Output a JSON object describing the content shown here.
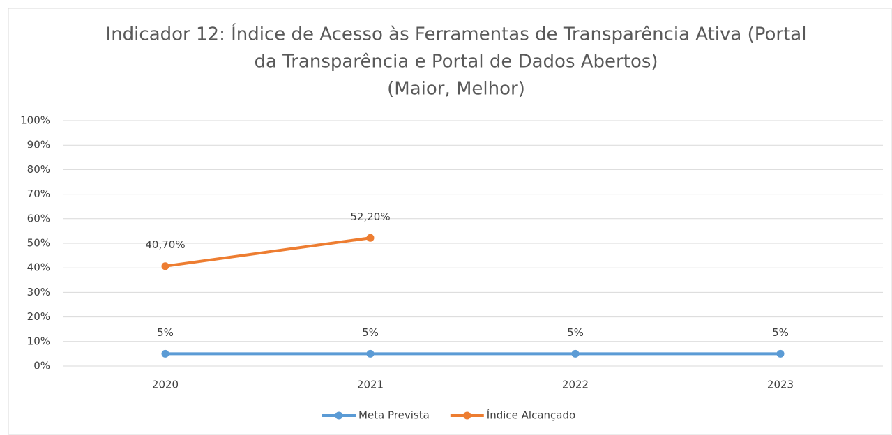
{
  "chart_data": {
    "type": "line",
    "title": [
      "Indicador 12: Índice de Acesso às Ferramentas de Transparência Ativa (Portal",
      "da Transparência e Portal de Dados Abertos)"
    ],
    "subtitle": "(Maior, Melhor)",
    "categories": [
      "2020",
      "2021",
      "2022",
      "2023"
    ],
    "series": [
      {
        "name": "Meta Prevista",
        "color": "#5b9bd5",
        "values": [
          5,
          5,
          5,
          5
        ],
        "value_labels": [
          "5%",
          "5%",
          "5%",
          "5%"
        ]
      },
      {
        "name": "Índice Alcançado",
        "color": "#ed7d31",
        "values": [
          40.7,
          52.2,
          null,
          null
        ],
        "value_labels": [
          "40,70%",
          "52,20%",
          null,
          null
        ]
      }
    ],
    "ylim": [
      0,
      100
    ],
    "yticks": [
      {
        "value": 0,
        "label": "0%"
      },
      {
        "value": 10,
        "label": "10%"
      },
      {
        "value": 20,
        "label": "20%"
      },
      {
        "value": 30,
        "label": "30%"
      },
      {
        "value": 40,
        "label": "40%"
      },
      {
        "value": 50,
        "label": "50%"
      },
      {
        "value": 60,
        "label": "60%"
      },
      {
        "value": 70,
        "label": "70%"
      },
      {
        "value": 80,
        "label": "80%"
      },
      {
        "value": 90,
        "label": "90%"
      },
      {
        "value": 100,
        "label": "100%"
      }
    ],
    "grid": true,
    "legend": "bottom"
  }
}
